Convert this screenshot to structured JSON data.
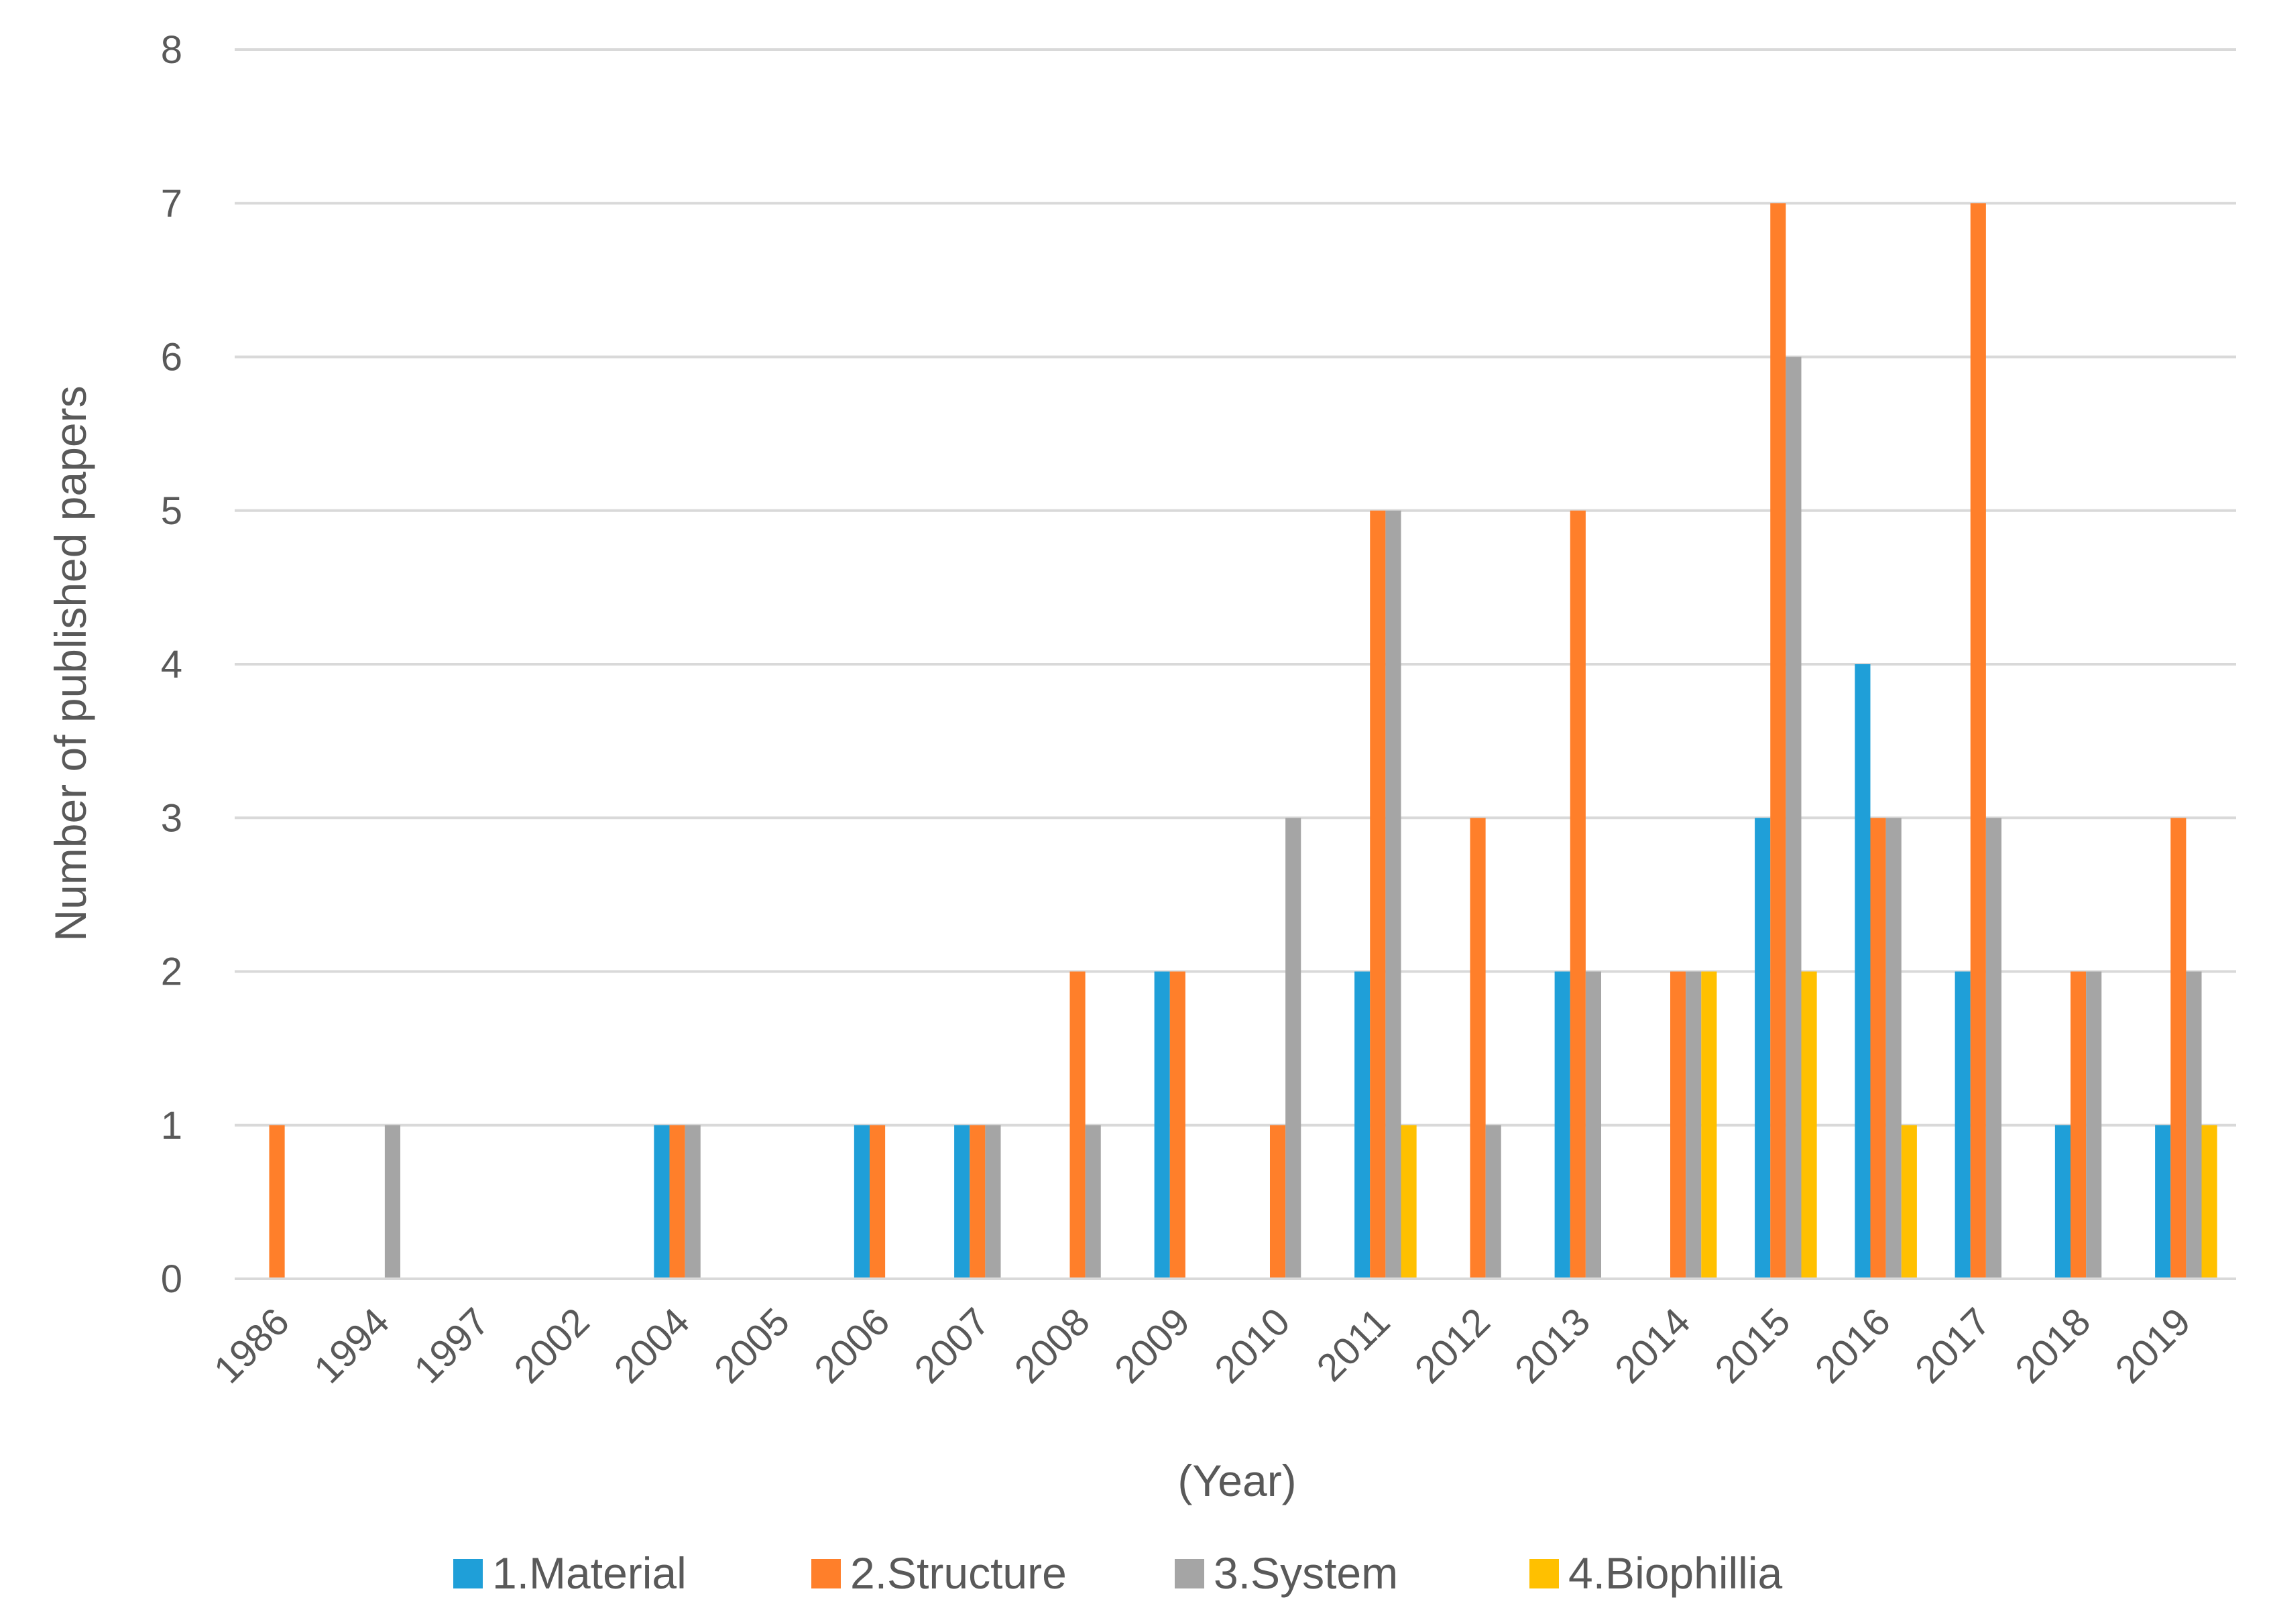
{
  "chart_data": {
    "type": "bar",
    "title": "",
    "xlabel": "(Year)",
    "ylabel": "Number of published papers",
    "ylim": [
      0,
      8
    ],
    "yticks": [
      0,
      1,
      2,
      3,
      4,
      5,
      6,
      7,
      8
    ],
    "grid": true,
    "legend_position": "bottom",
    "categories": [
      "1986",
      "1994",
      "1997",
      "2002",
      "2004",
      "2005",
      "2006",
      "2007",
      "2008",
      "2009",
      "2010",
      "2011",
      "2012",
      "2013",
      "2014",
      "2015",
      "2016",
      "2017",
      "2018",
      "2019"
    ],
    "series": [
      {
        "name": "1.Material",
        "color": "#1f9fd8",
        "values": [
          0,
          0,
          0,
          0,
          1,
          0,
          1,
          1,
          0,
          2,
          0,
          2,
          0,
          2,
          0,
          3,
          4,
          2,
          1,
          1
        ]
      },
      {
        "name": "2.Structure",
        "color": "#ff7f2a",
        "values": [
          1,
          0,
          0,
          0,
          1,
          0,
          1,
          1,
          2,
          2,
          1,
          5,
          3,
          5,
          2,
          7,
          3,
          7,
          2,
          3
        ]
      },
      {
        "name": "3.System",
        "color": "#a5a5a5",
        "values": [
          0,
          1,
          0,
          0,
          1,
          0,
          0,
          1,
          1,
          0,
          3,
          5,
          1,
          2,
          2,
          6,
          3,
          3,
          2,
          2
        ]
      },
      {
        "name": "4.Biophillia",
        "color": "#ffc000",
        "values": [
          0,
          0,
          0,
          0,
          0,
          0,
          0,
          0,
          0,
          0,
          0,
          1,
          0,
          0,
          2,
          2,
          1,
          0,
          0,
          1
        ]
      }
    ]
  }
}
